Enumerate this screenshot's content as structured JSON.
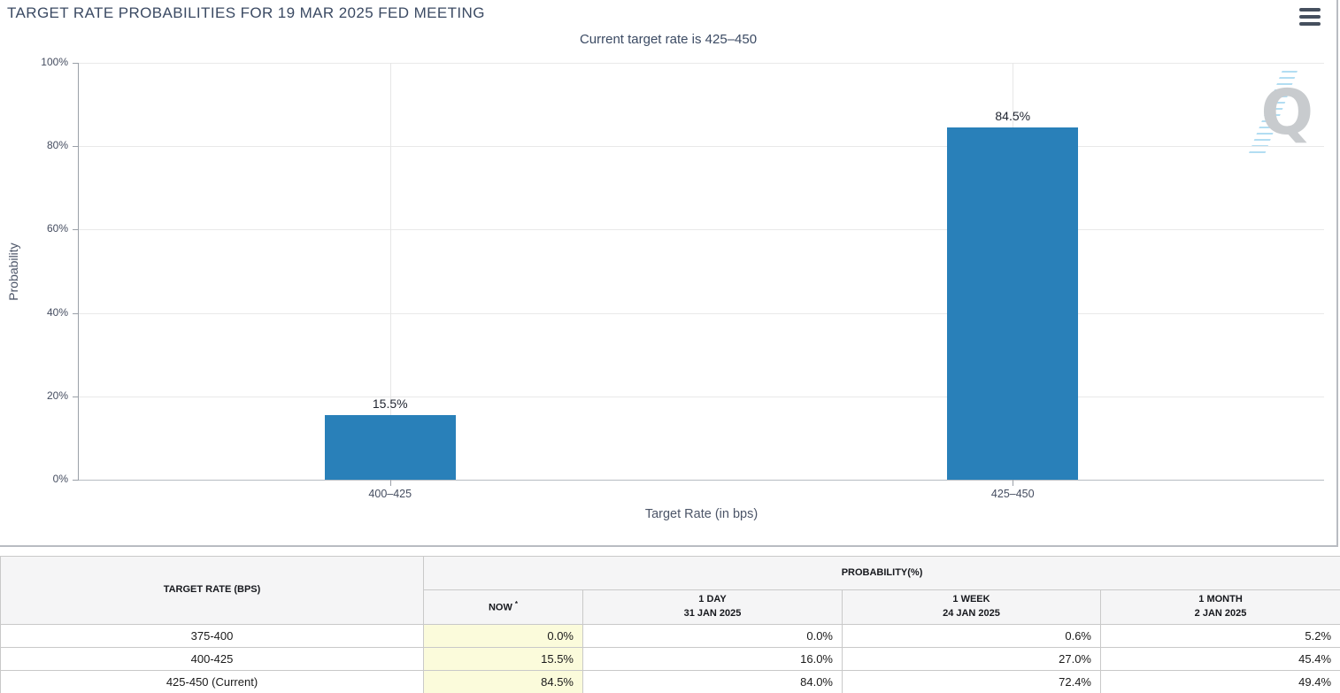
{
  "header": {
    "title": "TARGET RATE PROBABILITIES FOR 19 MAR 2025 FED MEETING",
    "subtitle": "Current target rate is 425–450",
    "menu_icon": "hamburger-menu-icon",
    "watermark_letter": "Q"
  },
  "chart_data": {
    "type": "bar",
    "title": "TARGET RATE PROBABILITIES FOR 19 MAR 2025 FED MEETING",
    "subtitle": "Current target rate is 425–450",
    "categories": [
      "400–425",
      "425–450"
    ],
    "values": [
      15.5,
      84.5
    ],
    "bar_labels": [
      "15.5%",
      "84.5%"
    ],
    "xlabel": "Target Rate (in bps)",
    "ylabel": "Probability",
    "ylim": [
      0,
      100
    ],
    "ytick_labels": [
      "0%",
      "20%",
      "40%",
      "60%",
      "80%",
      "100%"
    ],
    "grid": true,
    "legend": false,
    "bar_color": "#2980b9"
  },
  "table": {
    "col1_header": "TARGET RATE (BPS)",
    "group_header": "PROBABILITY(%)",
    "columns": [
      {
        "label": "NOW",
        "sup": "*",
        "date": ""
      },
      {
        "label": "1 DAY",
        "sup": "",
        "date": "31 JAN 2025"
      },
      {
        "label": "1 WEEK",
        "sup": "",
        "date": "24 JAN 2025"
      },
      {
        "label": "1 MONTH",
        "sup": "",
        "date": "2 JAN 2025"
      }
    ],
    "rows": [
      {
        "rate": "375-400",
        "now": "0.0%",
        "day": "0.0%",
        "week": "0.6%",
        "month": "5.2%"
      },
      {
        "rate": "400-425",
        "now": "15.5%",
        "day": "16.0%",
        "week": "27.0%",
        "month": "45.4%"
      },
      {
        "rate": "425-450 (Current)",
        "now": "84.5%",
        "day": "84.0%",
        "week": "72.4%",
        "month": "49.4%"
      }
    ]
  },
  "colors": {
    "bar": "#2980b9",
    "title_text": "#3b4a63",
    "now_column_highlight": "#fbfbdb",
    "table_header_bg": "#f5f5f6",
    "grid_line": "#e9e9e9",
    "panel_border": "#b9bcc2"
  }
}
